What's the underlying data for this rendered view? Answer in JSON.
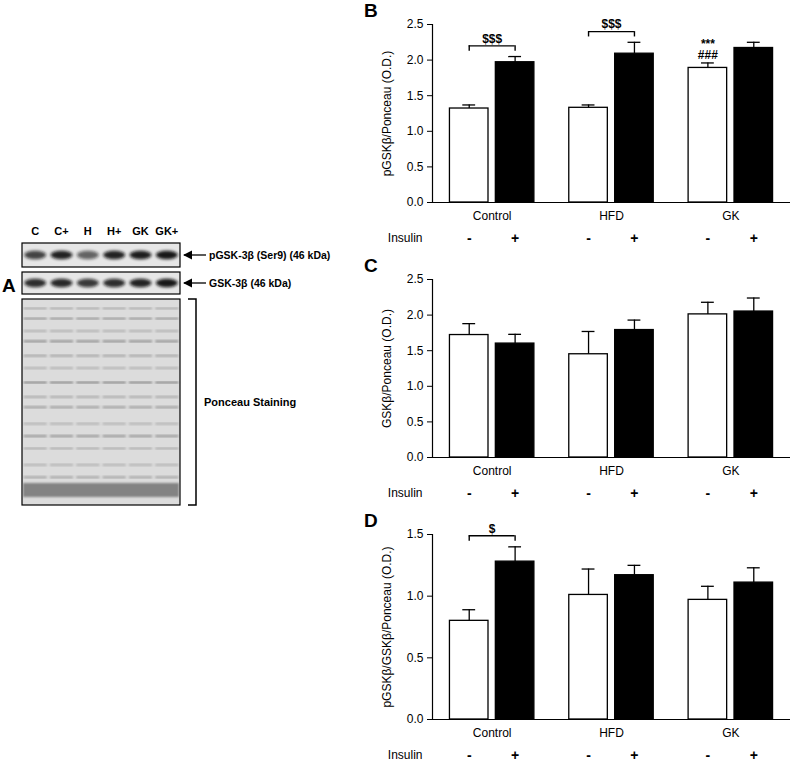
{
  "blot": {
    "title": "A",
    "lanes": [
      "C",
      "C+",
      "H",
      "H+",
      "GK",
      "GK+"
    ],
    "rows": [
      "pGSK-3β (Ser9) (46 kDa)",
      "GSK-3β (46 kDa)"
    ],
    "stain": "Ponceau Staining"
  },
  "chart_data": [
    {
      "type": "bar",
      "title": "B",
      "ylabel": "pGSKβ/Ponceau (O.D.)",
      "xlabel": "Insulin",
      "categories": [
        "Control",
        "HFD",
        "GK"
      ],
      "series": [
        {
          "name": "-",
          "color": "#ffffff",
          "values": [
            1.32,
            1.33,
            1.89
          ],
          "errors": [
            0.05,
            0.04,
            0.07
          ]
        },
        {
          "name": "+",
          "color": "#000000",
          "values": [
            1.97,
            2.09,
            2.17
          ],
          "errors": [
            0.08,
            0.16,
            0.08
          ]
        }
      ],
      "ylim": [
        0,
        2.5
      ],
      "yticks": [
        {
          "value": 0,
          "label": "0.0"
        },
        0.5,
        {
          "value": 1,
          "label": "1.0"
        },
        1.5,
        {
          "value": 2,
          "label": "2.0"
        },
        2.5
      ],
      "annotations": [
        {
          "text": "$$$",
          "category": "Control"
        },
        {
          "text": "$$$",
          "category": "HFD"
        },
        {
          "text": "***",
          "category": "GK",
          "series": "-"
        },
        {
          "text": "###",
          "category": "GK",
          "series": "-"
        }
      ]
    },
    {
      "type": "bar",
      "title": "C",
      "ylabel": "GSKβ/Ponceau (O.D.)",
      "xlabel": "Insulin",
      "categories": [
        "Control",
        "HFD",
        "GK"
      ],
      "series": [
        {
          "name": "-",
          "color": "#ffffff",
          "values": [
            1.72,
            1.45,
            2.01
          ],
          "errors": [
            0.16,
            0.32,
            0.17
          ]
        },
        {
          "name": "+",
          "color": "#000000",
          "values": [
            1.6,
            1.79,
            2.05
          ],
          "errors": [
            0.13,
            0.14,
            0.19
          ]
        }
      ],
      "ylim": [
        0,
        2.5
      ],
      "yticks": [
        {
          "value": 0,
          "label": "0.0"
        },
        0.5,
        {
          "value": 1,
          "label": "1.0"
        },
        1.5,
        {
          "value": 2,
          "label": "2.0"
        },
        2.5
      ],
      "annotations": []
    },
    {
      "type": "bar",
      "title": "D",
      "ylabel": "pGSKβ/GSKβ/Ponceau (O.D.)",
      "xlabel": "Insulin",
      "categories": [
        "Control",
        "HFD",
        "GK"
      ],
      "series": [
        {
          "name": "-",
          "color": "#ffffff",
          "values": [
            0.8,
            1.01,
            0.97
          ],
          "errors": [
            0.09,
            0.21,
            0.11
          ]
        },
        {
          "name": "+",
          "color": "#000000",
          "values": [
            1.28,
            1.17,
            1.11
          ],
          "errors": [
            0.12,
            0.08,
            0.12
          ]
        }
      ],
      "ylim": [
        0,
        1.5
      ],
      "yticks": [
        {
          "value": 0,
          "label": "0.0"
        },
        0.5,
        {
          "value": 1,
          "label": "1.0"
        },
        1.5
      ],
      "annotations": [
        {
          "text": "$",
          "category": "Control"
        }
      ]
    }
  ]
}
